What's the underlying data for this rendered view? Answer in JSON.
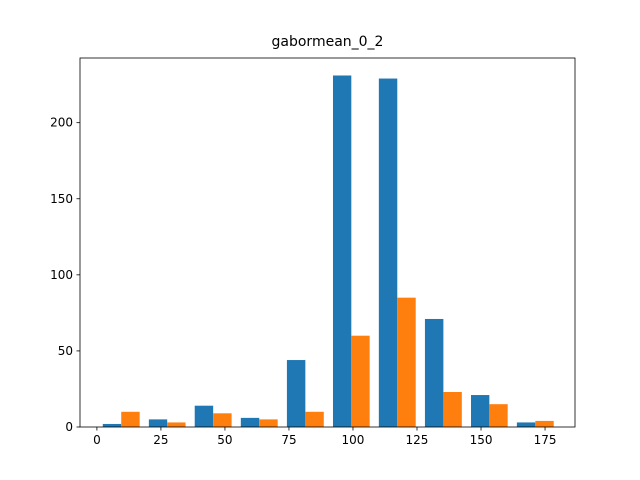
{
  "chart_data": {
    "type": "histogram",
    "title": "gabormean_0_2",
    "bins": [
      0.5,
      18.5,
      36.4,
      54.4,
      72.4,
      90.4,
      108.3,
      126.3,
      144.3,
      162.2,
      180.2
    ],
    "series": [
      {
        "color": "#1f77b4",
        "values": [
          2,
          5,
          14,
          6,
          44,
          231,
          229,
          71,
          21,
          3
        ]
      },
      {
        "color": "#ff7f0e",
        "values": [
          10,
          3,
          9,
          5,
          10,
          60,
          85,
          23,
          15,
          4
        ]
      }
    ],
    "xlim": [
      -6.6,
      186.7
    ],
    "ylim": [
      0,
      242.5
    ],
    "xticks": [
      0,
      25,
      50,
      75,
      100,
      125,
      150,
      175
    ],
    "yticks": [
      0,
      50,
      100,
      150,
      200
    ],
    "grid": false
  }
}
